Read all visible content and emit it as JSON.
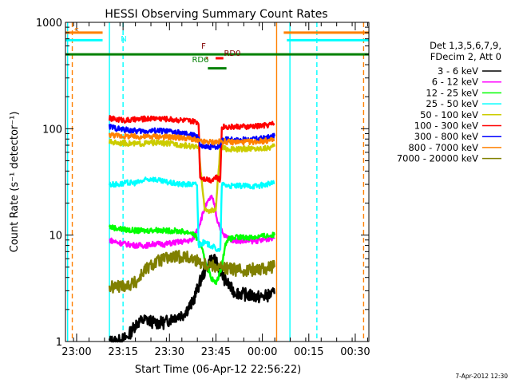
{
  "chart_data": {
    "type": "line",
    "title": "HESSI Observing Summary Count Rates",
    "ylabel": "Count Rate (s⁻¹ detector⁻¹)",
    "xlabel": "Start Time (06-Apr-12 22:56:22)",
    "ylim": [
      1,
      1000
    ],
    "ylog": true,
    "xlim_minutes": [
      0,
      98
    ],
    "yticks": [
      "1",
      "10",
      "100",
      "1000"
    ],
    "xticks": [
      {
        "label": "23:00",
        "t": 3.6
      },
      {
        "label": "23:15",
        "t": 18.6
      },
      {
        "label": "23:30",
        "t": 33.6
      },
      {
        "label": "23:45",
        "t": 48.6
      },
      {
        "label": "00:00",
        "t": 63.6
      },
      {
        "label": "00:15",
        "t": 78.6
      },
      {
        "label": "00:30",
        "t": 93.6
      }
    ],
    "legend_header": [
      "Det 1,3,5,6,7,9,",
      "FDecim 2, Att 0"
    ],
    "legend_placement": "right",
    "series": [
      {
        "name": "3 - 6 keV",
        "color": "#000000",
        "points": [
          [
            14.2,
            1
          ],
          [
            17,
            1
          ],
          [
            20,
            1.1
          ],
          [
            23,
            1.5
          ],
          [
            26,
            1.6
          ],
          [
            29,
            1.5
          ],
          [
            32,
            1.5
          ],
          [
            35,
            1.7
          ],
          [
            38,
            1.8
          ],
          [
            41,
            2.3
          ],
          [
            44,
            4
          ],
          [
            47,
            6
          ],
          [
            49,
            5.5
          ],
          [
            51,
            4
          ],
          [
            54,
            3
          ],
          [
            57,
            2.8
          ],
          [
            60,
            2.7
          ],
          [
            63,
            2.6
          ],
          [
            65,
            2.7
          ],
          [
            67.5,
            2.8
          ]
        ]
      },
      {
        "name": "6 - 12 keV",
        "color": "#ff00ff",
        "points": [
          [
            14.2,
            9
          ],
          [
            17,
            8.5
          ],
          [
            20,
            8.2
          ],
          [
            23,
            8
          ],
          [
            26,
            8
          ],
          [
            29,
            8.3
          ],
          [
            32,
            8.2
          ],
          [
            35,
            8.5
          ],
          [
            38,
            8.7
          ],
          [
            41,
            9
          ],
          [
            43,
            12
          ],
          [
            45,
            18
          ],
          [
            47,
            23
          ],
          [
            48,
            20
          ],
          [
            49,
            14
          ],
          [
            51,
            10
          ],
          [
            54,
            9
          ],
          [
            57,
            8.8
          ],
          [
            60,
            8.8
          ],
          [
            63,
            8.9
          ],
          [
            65,
            9.2
          ],
          [
            67.5,
            9.5
          ]
        ]
      },
      {
        "name": "12 - 25 keV",
        "color": "#00ff00",
        "points": [
          [
            14.2,
            12
          ],
          [
            17,
            11.5
          ],
          [
            20,
            11.2
          ],
          [
            23,
            11
          ],
          [
            26,
            11
          ],
          [
            29,
            11.2
          ],
          [
            32,
            11
          ],
          [
            35,
            11
          ],
          [
            38,
            10.8
          ],
          [
            41,
            10.5
          ],
          [
            43,
            9
          ],
          [
            45,
            6
          ],
          [
            47,
            4
          ],
          [
            48.5,
            3.5
          ],
          [
            50,
            4.5
          ],
          [
            52,
            9
          ],
          [
            55,
            9.5
          ],
          [
            58,
            9.5
          ],
          [
            61,
            9.6
          ],
          [
            64,
            9.8
          ],
          [
            67.5,
            10
          ]
        ]
      },
      {
        "name": "25 - 50 keV",
        "color": "#00ffff",
        "points": [
          [
            14.2,
            30
          ],
          [
            17,
            30
          ],
          [
            20,
            31
          ],
          [
            23,
            31
          ],
          [
            26,
            33
          ],
          [
            28,
            34
          ],
          [
            31,
            32
          ],
          [
            34,
            31
          ],
          [
            37,
            30
          ],
          [
            40,
            30
          ],
          [
            42.5,
            30
          ],
          [
            43,
            8
          ],
          [
            44.5,
            8.5
          ],
          [
            47,
            8
          ],
          [
            48.5,
            7.5
          ],
          [
            50,
            7
          ],
          [
            50.5,
            30
          ],
          [
            53,
            29
          ],
          [
            56,
            29
          ],
          [
            59,
            29
          ],
          [
            62,
            29
          ],
          [
            65,
            30
          ],
          [
            67.5,
            31
          ]
        ]
      },
      {
        "name": "50 - 100 keV",
        "color": "#cccc00",
        "points": [
          [
            14.2,
            75
          ],
          [
            17,
            74
          ],
          [
            20,
            73
          ],
          [
            23,
            72
          ],
          [
            26,
            73
          ],
          [
            29,
            74
          ],
          [
            32,
            73
          ],
          [
            35,
            72
          ],
          [
            38,
            70
          ],
          [
            41,
            68
          ],
          [
            43,
            66
          ],
          [
            45,
            17
          ],
          [
            47,
            17
          ],
          [
            48.5,
            17
          ],
          [
            50,
            66
          ],
          [
            53,
            64
          ],
          [
            56,
            64
          ],
          [
            59,
            65
          ],
          [
            62,
            65
          ],
          [
            65,
            66
          ],
          [
            67.5,
            68
          ]
        ]
      },
      {
        "name": "100 - 300 keV",
        "color": "#ff0000",
        "points": [
          [
            14.2,
            125
          ],
          [
            17,
            122
          ],
          [
            20,
            120
          ],
          [
            23,
            122
          ],
          [
            26,
            124
          ],
          [
            29,
            126
          ],
          [
            32,
            124
          ],
          [
            35,
            122
          ],
          [
            38,
            120
          ],
          [
            41,
            117
          ],
          [
            43,
            115
          ],
          [
            43.5,
            35
          ],
          [
            45,
            34
          ],
          [
            47,
            33
          ],
          [
            48.5,
            35
          ],
          [
            50,
            33
          ],
          [
            50.5,
            105
          ],
          [
            53,
            104
          ],
          [
            56,
            105
          ],
          [
            59,
            104
          ],
          [
            62,
            106
          ],
          [
            65,
            108
          ],
          [
            67.5,
            112
          ]
        ]
      },
      {
        "name": "300 - 800 keV",
        "color": "#0000ff",
        "points": [
          [
            14.2,
            105
          ],
          [
            17,
            100
          ],
          [
            20,
            97
          ],
          [
            23,
            95
          ],
          [
            26,
            95
          ],
          [
            29,
            96
          ],
          [
            32,
            95
          ],
          [
            35,
            93
          ],
          [
            38,
            90
          ],
          [
            41,
            87
          ],
          [
            43,
            85
          ],
          [
            43.5,
            68
          ],
          [
            45,
            67
          ],
          [
            47,
            68
          ],
          [
            48.5,
            68
          ],
          [
            50,
            69
          ],
          [
            50.5,
            80
          ],
          [
            53,
            79
          ],
          [
            56,
            78
          ],
          [
            59,
            79
          ],
          [
            62,
            80
          ],
          [
            65,
            82
          ],
          [
            67.5,
            85
          ]
        ]
      },
      {
        "name": "800 - 7000 keV",
        "color": "#ff8000",
        "points": [
          [
            14.2,
            88
          ],
          [
            17,
            86
          ],
          [
            20,
            85
          ],
          [
            23,
            84
          ],
          [
            26,
            84
          ],
          [
            29,
            85
          ],
          [
            32,
            84
          ],
          [
            35,
            83
          ],
          [
            38,
            82
          ],
          [
            41,
            80
          ],
          [
            43,
            76
          ],
          [
            45,
            75
          ],
          [
            47,
            75
          ],
          [
            49,
            75
          ],
          [
            51,
            76
          ],
          [
            53,
            75
          ],
          [
            56,
            75
          ],
          [
            59,
            75
          ],
          [
            62,
            76
          ],
          [
            65,
            77
          ],
          [
            67.5,
            78
          ]
        ]
      },
      {
        "name": "7000 - 20000 keV",
        "color": "#808000",
        "points": [
          [
            14.2,
            3.2
          ],
          [
            17,
            3.3
          ],
          [
            20,
            3.4
          ],
          [
            23,
            3.6
          ],
          [
            25,
            4.5
          ],
          [
            27,
            5
          ],
          [
            29,
            5.5
          ],
          [
            32,
            6
          ],
          [
            35,
            6.2
          ],
          [
            38,
            6.3
          ],
          [
            41,
            6
          ],
          [
            44,
            5.5
          ],
          [
            47,
            5.2
          ],
          [
            50,
            5
          ],
          [
            53,
            4.8
          ],
          [
            56,
            4.7
          ],
          [
            59,
            4.7
          ],
          [
            62,
            4.8
          ],
          [
            65,
            4.9
          ],
          [
            67.5,
            5
          ]
        ]
      }
    ],
    "annotations": [
      {
        "label": "S",
        "color": "#ff8000"
      },
      {
        "label": "N",
        "color": "#00ffff"
      },
      {
        "label": "F",
        "color": "#800000"
      },
      {
        "label": "RD0",
        "color": "#800000"
      },
      {
        "label": "RD6",
        "color": "#008000"
      }
    ],
    "flags": [
      {
        "name": "saa",
        "color": "#ff8000",
        "y": 800,
        "segments": [
          [
            0,
            12
          ],
          [
            70.5,
            98
          ]
        ]
      },
      {
        "name": "night",
        "color": "#00ffff",
        "y": 680,
        "segments": [
          [
            0,
            12
          ],
          [
            71.5,
            98
          ]
        ]
      },
      {
        "name": "decimation",
        "color": "#008000",
        "y": 500,
        "segments": [
          [
            0,
            98
          ]
        ]
      },
      {
        "name": "rd6",
        "color": "#008000",
        "y": 370,
        "segments": [
          [
            46,
            52
          ]
        ]
      },
      {
        "name": "rd0",
        "color": "#ff0000",
        "y": 460,
        "segments": [
          [
            48.5,
            51
          ]
        ]
      },
      {
        "name": "flare",
        "color": "#ff0000",
        "y": 460,
        "segments": [
          [
            45.5,
            46
          ]
        ]
      }
    ],
    "vlines": [
      {
        "t": 2.2,
        "color": "#ff8000",
        "style": "dashed"
      },
      {
        "t": 96.3,
        "color": "#ff8000",
        "style": "dashed"
      },
      {
        "t": 68.2,
        "color": "#ff8000",
        "style": "solid"
      },
      {
        "t": 14.2,
        "color": "#00ffff",
        "style": "solid"
      },
      {
        "t": 18.6,
        "color": "#00ffff",
        "style": "dashed"
      },
      {
        "t": 72.5,
        "color": "#00ffff",
        "style": "solid"
      },
      {
        "t": 81.2,
        "color": "#00ffff",
        "style": "dashed"
      },
      {
        "t": 0.7,
        "color": "#00ffff",
        "style": "solid"
      }
    ]
  },
  "footer": {
    "timestamp": "7-Apr-2012 12:30"
  }
}
